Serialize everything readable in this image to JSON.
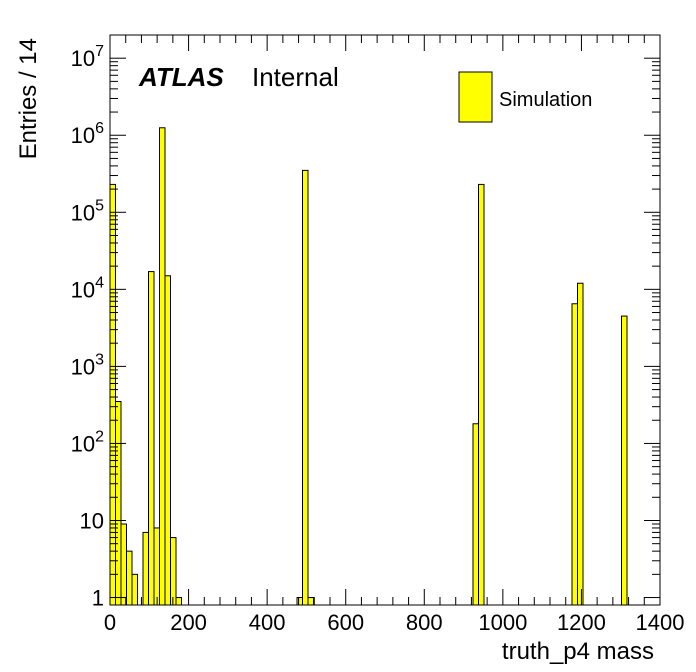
{
  "chart_data": {
    "type": "bar",
    "title": "",
    "xlabel": "truth_p4 mass",
    "ylabel": "Entries / 14",
    "label_main": "ATLAS",
    "label_sub": "Internal",
    "legend": [
      {
        "name": "Simulation",
        "color": "#ffff00"
      }
    ],
    "legend_position": "top-right",
    "xlim": [
      0,
      1400
    ],
    "ylim": [
      0.8,
      20000000
    ],
    "yscale": "log",
    "bin_width": 14,
    "fill_color": "#ffff00",
    "line_color": "#000000",
    "xticks": [
      0,
      200,
      400,
      600,
      800,
      1000,
      1200,
      1400
    ],
    "yticks": [
      {
        "value": 1,
        "base": "1",
        "exp": ""
      },
      {
        "value": 10,
        "base": "10",
        "exp": ""
      },
      {
        "value": 100,
        "base": "10",
        "exp": "2"
      },
      {
        "value": 1000,
        "base": "10",
        "exp": "3"
      },
      {
        "value": 10000,
        "base": "10",
        "exp": "4"
      },
      {
        "value": 100000,
        "base": "10",
        "exp": "5"
      },
      {
        "value": 1000000,
        "base": "10",
        "exp": "6"
      },
      {
        "value": 10000000,
        "base": "10",
        "exp": "7"
      }
    ],
    "bins": [
      {
        "x": 0,
        "y": 230000
      },
      {
        "x": 14,
        "y": 350
      },
      {
        "x": 28,
        "y": 9
      },
      {
        "x": 42,
        "y": 4
      },
      {
        "x": 56,
        "y": 2
      },
      {
        "x": 84,
        "y": 7
      },
      {
        "x": 98,
        "y": 17000
      },
      {
        "x": 112,
        "y": 8
      },
      {
        "x": 126,
        "y": 1250000
      },
      {
        "x": 140,
        "y": 15000
      },
      {
        "x": 154,
        "y": 6
      },
      {
        "x": 168,
        "y": 1
      },
      {
        "x": 476,
        "y": 1
      },
      {
        "x": 490,
        "y": 350000
      },
      {
        "x": 504,
        "y": 1
      },
      {
        "x": 924,
        "y": 180
      },
      {
        "x": 938,
        "y": 230000
      },
      {
        "x": 1176,
        "y": 6500
      },
      {
        "x": 1190,
        "y": 12000
      },
      {
        "x": 1302,
        "y": 4500
      }
    ]
  }
}
